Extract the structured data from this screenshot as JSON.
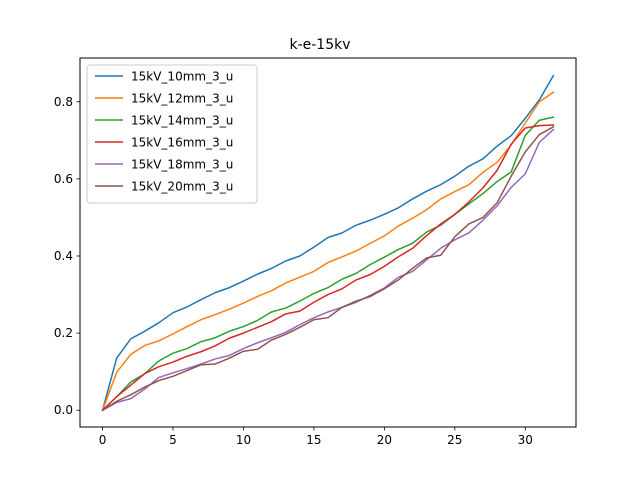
{
  "chart_data": {
    "type": "line",
    "title": "k-e-15kv",
    "xlabel": "",
    "ylabel": "",
    "xlim": [
      -1.6,
      33.6
    ],
    "ylim": [
      -0.0435,
      0.9135
    ],
    "xticks": [
      0,
      5,
      10,
      15,
      20,
      25,
      30
    ],
    "yticks": [
      0.0,
      0.2,
      0.4,
      0.6,
      0.8
    ],
    "xtick_labels": [
      "0",
      "5",
      "10",
      "15",
      "20",
      "25",
      "30"
    ],
    "ytick_labels": [
      "0.0",
      "0.2",
      "0.4",
      "0.6",
      "0.8"
    ],
    "grid": false,
    "legend_position": "upper-left",
    "x": [
      0,
      1,
      2,
      3,
      4,
      5,
      6,
      7,
      8,
      9,
      10,
      11,
      12,
      13,
      14,
      15,
      16,
      17,
      18,
      19,
      20,
      21,
      22,
      23,
      24,
      25,
      26,
      27,
      28,
      29,
      30,
      31,
      32
    ],
    "series": [
      {
        "name": "15kV_10mm_3_u",
        "color": "#1f77b4",
        "values": [
          0.0,
          0.135,
          0.185,
          0.205,
          0.227,
          0.253,
          0.268,
          0.287,
          0.305,
          0.318,
          0.335,
          0.353,
          0.368,
          0.387,
          0.4,
          0.423,
          0.448,
          0.46,
          0.48,
          0.493,
          0.508,
          0.525,
          0.548,
          0.568,
          0.585,
          0.607,
          0.633,
          0.652,
          0.685,
          0.712,
          0.757,
          0.805,
          0.868
        ]
      },
      {
        "name": "15kV_12mm_3_u",
        "color": "#ff7f0e",
        "values": [
          0.0,
          0.098,
          0.145,
          0.168,
          0.18,
          0.198,
          0.217,
          0.235,
          0.248,
          0.262,
          0.278,
          0.295,
          0.31,
          0.33,
          0.345,
          0.36,
          0.383,
          0.398,
          0.413,
          0.433,
          0.452,
          0.478,
          0.498,
          0.52,
          0.548,
          0.567,
          0.585,
          0.617,
          0.643,
          0.688,
          0.745,
          0.8,
          0.825
        ]
      },
      {
        "name": "15kV_14mm_3_u",
        "color": "#2ca02c",
        "values": [
          0.0,
          0.035,
          0.073,
          0.095,
          0.128,
          0.148,
          0.16,
          0.178,
          0.188,
          0.205,
          0.217,
          0.233,
          0.255,
          0.265,
          0.283,
          0.303,
          0.318,
          0.34,
          0.355,
          0.378,
          0.397,
          0.417,
          0.433,
          0.462,
          0.48,
          0.508,
          0.535,
          0.562,
          0.593,
          0.618,
          0.713,
          0.752,
          0.76
        ]
      },
      {
        "name": "15kV_16mm_3_u",
        "color": "#d62728",
        "values": [
          0.0,
          0.035,
          0.065,
          0.095,
          0.113,
          0.125,
          0.14,
          0.152,
          0.167,
          0.187,
          0.2,
          0.215,
          0.23,
          0.25,
          0.257,
          0.28,
          0.3,
          0.315,
          0.338,
          0.352,
          0.373,
          0.398,
          0.42,
          0.453,
          0.483,
          0.508,
          0.54,
          0.577,
          0.622,
          0.69,
          0.732,
          0.738,
          0.74
        ]
      },
      {
        "name": "15kV_18mm_3_u",
        "color": "#9467bd",
        "values": [
          0.0,
          0.02,
          0.03,
          0.055,
          0.085,
          0.097,
          0.108,
          0.12,
          0.133,
          0.142,
          0.16,
          0.175,
          0.188,
          0.202,
          0.222,
          0.24,
          0.255,
          0.267,
          0.28,
          0.298,
          0.317,
          0.345,
          0.36,
          0.39,
          0.42,
          0.442,
          0.46,
          0.493,
          0.53,
          0.578,
          0.613,
          0.695,
          0.728
        ]
      },
      {
        "name": "15kV_20mm_3_u",
        "color": "#8c564b",
        "values": [
          0.0,
          0.023,
          0.04,
          0.06,
          0.077,
          0.088,
          0.103,
          0.118,
          0.12,
          0.135,
          0.153,
          0.158,
          0.182,
          0.197,
          0.215,
          0.235,
          0.24,
          0.267,
          0.283,
          0.295,
          0.315,
          0.338,
          0.368,
          0.395,
          0.402,
          0.45,
          0.483,
          0.5,
          0.538,
          0.607,
          0.67,
          0.715,
          0.735
        ]
      }
    ]
  }
}
